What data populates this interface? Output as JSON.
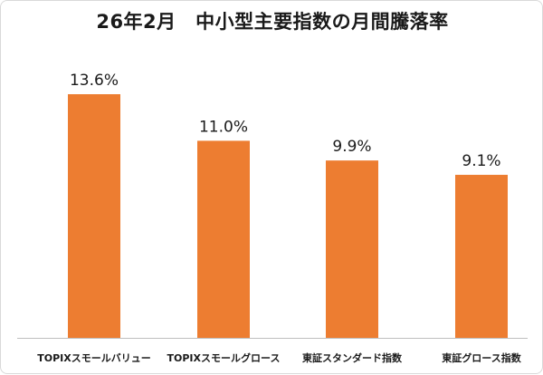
{
  "chart_data": {
    "type": "bar",
    "title": "26年2月　中小型主要指数の月間騰落率",
    "categories": [
      "TOPIXスモールバリュー",
      "TOPIXスモールグロース",
      "東証スタンダード指数",
      "東証グロース指数"
    ],
    "values": [
      13.6,
      11.0,
      9.9,
      9.1
    ],
    "value_labels": [
      "13.6%",
      "11.0%",
      "9.9%",
      "9.1%"
    ],
    "unit": "%",
    "ylim": [
      0,
      15
    ],
    "grid": false,
    "legend": "none",
    "colors": {
      "bar": "#ed7d31",
      "text": "#1a1a1a",
      "axis": "#bfbfbf"
    }
  }
}
